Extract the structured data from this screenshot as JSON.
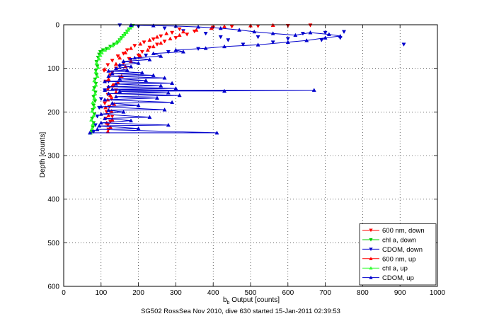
{
  "chart_data": {
    "type": "scatter",
    "xlabel_main": "b",
    "xlabel_sub": "b",
    "xlabel_rest": " Output [counts]",
    "ylabel": "Depth [counts]",
    "caption": "SG502 RossSea Nov 2010, dive 630 started 15-Jan-2011 02:39:53",
    "xlim": [
      0,
      1000
    ],
    "ylim": [
      0,
      600
    ],
    "y_reversed": true,
    "grid": true,
    "grid_style": "dotted",
    "legend_placement": "bottom-right",
    "xticks": [
      0,
      100,
      200,
      300,
      400,
      500,
      600,
      700,
      800,
      900,
      1000
    ],
    "yticks": [
      0,
      100,
      200,
      300,
      400,
      500,
      600
    ],
    "series": [
      {
        "name": "600 nm, down",
        "color": "#ff0000",
        "marker": "triangle-down",
        "line": false,
        "points": [
          [
            120,
            240
          ],
          [
            118,
            230
          ],
          [
            125,
            222
          ],
          [
            112,
            215
          ],
          [
            130,
            210
          ],
          [
            115,
            200
          ],
          [
            122,
            188
          ],
          [
            110,
            180
          ],
          [
            128,
            170
          ],
          [
            118,
            160
          ],
          [
            140,
            150
          ],
          [
            120,
            145
          ],
          [
            135,
            138
          ],
          [
            112,
            130
          ],
          [
            150,
            120
          ],
          [
            125,
            115
          ],
          [
            108,
            105
          ],
          [
            140,
            100
          ],
          [
            118,
            92
          ],
          [
            160,
            88
          ],
          [
            130,
            82
          ],
          [
            175,
            78
          ],
          [
            145,
            72
          ],
          [
            200,
            70
          ],
          [
            160,
            66
          ],
          [
            210,
            62
          ],
          [
            170,
            58
          ],
          [
            230,
            52
          ],
          [
            190,
            48
          ],
          [
            250,
            45
          ],
          [
            215,
            40
          ],
          [
            270,
            38
          ],
          [
            240,
            33
          ],
          [
            300,
            30
          ],
          [
            260,
            26
          ],
          [
            330,
            22
          ],
          [
            290,
            18
          ],
          [
            350,
            15
          ],
          [
            310,
            10
          ],
          [
            400,
            6
          ],
          [
            450,
            4
          ],
          [
            520,
            3
          ],
          [
            600,
            2
          ],
          [
            660,
            1
          ]
        ]
      },
      {
        "name": "chl a, down",
        "color": "#00cc00",
        "marker": "triangle-down",
        "line": false,
        "points": [
          [
            75,
            245
          ],
          [
            78,
            235
          ],
          [
            80,
            225
          ],
          [
            76,
            215
          ],
          [
            82,
            205
          ],
          [
            78,
            195
          ],
          [
            80,
            185
          ],
          [
            84,
            175
          ],
          [
            80,
            165
          ],
          [
            85,
            155
          ],
          [
            82,
            145
          ],
          [
            86,
            135
          ],
          [
            84,
            125
          ],
          [
            88,
            115
          ],
          [
            86,
            105
          ],
          [
            90,
            95
          ],
          [
            88,
            85
          ],
          [
            92,
            75
          ],
          [
            95,
            68
          ],
          [
            98,
            62
          ],
          [
            105,
            58
          ],
          [
            115,
            55
          ],
          [
            125,
            50
          ],
          [
            135,
            45
          ],
          [
            145,
            40
          ],
          [
            150,
            35
          ],
          [
            155,
            30
          ],
          [
            160,
            25
          ],
          [
            165,
            20
          ],
          [
            170,
            15
          ],
          [
            175,
            10
          ],
          [
            180,
            5
          ],
          [
            185,
            2
          ]
        ]
      },
      {
        "name": "CDOM, down",
        "color": "#0000cc",
        "marker": "triangle-down",
        "line": false,
        "points": [
          [
            150,
            1
          ],
          [
            200,
            4
          ],
          [
            270,
            8
          ],
          [
            320,
            14
          ],
          [
            380,
            20
          ],
          [
            420,
            28
          ],
          [
            440,
            35
          ],
          [
            520,
            28
          ],
          [
            560,
            40
          ],
          [
            600,
            32
          ],
          [
            640,
            20
          ],
          [
            700,
            18
          ],
          [
            750,
            16
          ],
          [
            740,
            30
          ],
          [
            690,
            35
          ],
          [
            910,
            45
          ],
          [
            480,
            45
          ],
          [
            360,
            55
          ],
          [
            280,
            62
          ],
          [
            220,
            70
          ],
          [
            180,
            80
          ],
          [
            150,
            95
          ],
          [
            130,
            110
          ],
          [
            120,
            130
          ],
          [
            110,
            150
          ],
          [
            100,
            170
          ],
          [
            95,
            190
          ],
          [
            90,
            210
          ],
          [
            85,
            230
          ],
          [
            80,
            245
          ]
        ]
      },
      {
        "name": "600 nm, up",
        "color": "#ff0000",
        "marker": "triangle-up",
        "line": false,
        "points": [
          [
            118,
            245
          ],
          [
            125,
            235
          ],
          [
            115,
            225
          ],
          [
            130,
            218
          ],
          [
            120,
            208
          ],
          [
            128,
            198
          ],
          [
            112,
            190
          ],
          [
            135,
            182
          ],
          [
            118,
            172
          ],
          [
            125,
            162
          ],
          [
            140,
            155
          ],
          [
            118,
            148
          ],
          [
            130,
            140
          ],
          [
            145,
            132
          ],
          [
            120,
            125
          ],
          [
            155,
            118
          ],
          [
            130,
            110
          ],
          [
            110,
            102
          ],
          [
            165,
            96
          ],
          [
            140,
            90
          ],
          [
            180,
            84
          ],
          [
            150,
            76
          ],
          [
            205,
            72
          ],
          [
            165,
            64
          ],
          [
            225,
            58
          ],
          [
            180,
            54
          ],
          [
            240,
            50
          ],
          [
            205,
            44
          ],
          [
            260,
            42
          ],
          [
            230,
            35
          ],
          [
            285,
            32
          ],
          [
            250,
            28
          ],
          [
            310,
            24
          ],
          [
            275,
            20
          ],
          [
            320,
            16
          ],
          [
            355,
            12
          ],
          [
            395,
            8
          ],
          [
            430,
            4
          ],
          [
            500,
            2
          ],
          [
            560,
            1
          ]
        ]
      },
      {
        "name": "chl a, up",
        "color": "#33ff33",
        "marker": "triangle-up",
        "line": false,
        "points": [
          [
            72,
            248
          ],
          [
            76,
            238
          ],
          [
            78,
            228
          ],
          [
            74,
            218
          ],
          [
            80,
            208
          ],
          [
            76,
            198
          ],
          [
            82,
            188
          ],
          [
            78,
            178
          ],
          [
            82,
            168
          ],
          [
            84,
            158
          ],
          [
            80,
            148
          ],
          [
            86,
            138
          ],
          [
            82,
            128
          ],
          [
            90,
            118
          ],
          [
            86,
            108
          ],
          [
            92,
            98
          ],
          [
            88,
            88
          ],
          [
            94,
            78
          ],
          [
            98,
            70
          ],
          [
            102,
            64
          ],
          [
            110,
            58
          ],
          [
            120,
            54
          ],
          [
            130,
            48
          ],
          [
            140,
            42
          ],
          [
            148,
            37
          ],
          [
            152,
            32
          ],
          [
            158,
            26
          ],
          [
            162,
            22
          ],
          [
            168,
            17
          ],
          [
            172,
            12
          ],
          [
            178,
            7
          ],
          [
            182,
            3
          ]
        ]
      },
      {
        "name": "CDOM, up",
        "color": "#0000cc",
        "marker": "triangle-up",
        "line": true,
        "points": [
          [
            70,
            248
          ],
          [
            410,
            248
          ],
          [
            90,
            240
          ],
          [
            200,
            238
          ],
          [
            95,
            232
          ],
          [
            280,
            230
          ],
          [
            100,
            225
          ],
          [
            180,
            220
          ],
          [
            110,
            215
          ],
          [
            230,
            212
          ],
          [
            100,
            205
          ],
          [
            160,
            200
          ],
          [
            120,
            196
          ],
          [
            270,
            195
          ],
          [
            100,
            188
          ],
          [
            200,
            185
          ],
          [
            130,
            180
          ],
          [
            290,
            178
          ],
          [
            110,
            172
          ],
          [
            250,
            168
          ],
          [
            140,
            165
          ],
          [
            310,
            162
          ],
          [
            120,
            158
          ],
          [
            280,
            156
          ],
          [
            150,
            153
          ],
          [
            670,
            150
          ],
          [
            110,
            150
          ],
          [
            430,
            152
          ],
          [
            130,
            148
          ],
          [
            300,
            146
          ],
          [
            120,
            142
          ],
          [
            260,
            140
          ],
          [
            140,
            136
          ],
          [
            290,
            134
          ],
          [
            110,
            130
          ],
          [
            220,
            128
          ],
          [
            150,
            124
          ],
          [
            270,
            122
          ],
          [
            120,
            118
          ],
          [
            240,
            116
          ],
          [
            130,
            112
          ],
          [
            210,
            110
          ],
          [
            120,
            106
          ],
          [
            170,
            104
          ],
          [
            140,
            100
          ],
          [
            180,
            96
          ],
          [
            150,
            92
          ],
          [
            200,
            88
          ],
          [
            160,
            84
          ],
          [
            230,
            80
          ],
          [
            190,
            76
          ],
          [
            260,
            72
          ],
          [
            240,
            66
          ],
          [
            320,
            62
          ],
          [
            300,
            58
          ],
          [
            380,
            54
          ],
          [
            430,
            50
          ],
          [
            520,
            46
          ],
          [
            600,
            40
          ],
          [
            650,
            36
          ],
          [
            700,
            30
          ],
          [
            740,
            26
          ],
          [
            710,
            22
          ],
          [
            660,
            18
          ],
          [
            620,
            24
          ],
          [
            560,
            20
          ],
          [
            510,
            16
          ],
          [
            470,
            12
          ],
          [
            420,
            8
          ],
          [
            360,
            5
          ],
          [
            300,
            3
          ],
          [
            240,
            2
          ],
          [
            180,
            1
          ]
        ]
      }
    ]
  }
}
